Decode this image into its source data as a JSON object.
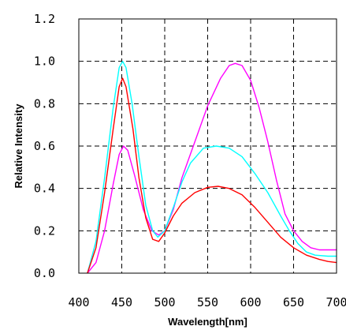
{
  "chart_data": {
    "type": "line",
    "title": "",
    "xlabel": "Wavelength[nm]",
    "ylabel": "Relative Intensity",
    "xlim": [
      400,
      700
    ],
    "ylim": [
      0,
      1.2
    ],
    "x_ticks": [
      "400",
      "450",
      "500",
      "550",
      "600",
      "650",
      "700"
    ],
    "y_ticks": [
      "0.0",
      "0.2",
      "0.4",
      "0.6",
      "0.8",
      "1.0",
      "1.2"
    ],
    "grid": true,
    "grid_style": "dashed",
    "legend": "none",
    "series": [
      {
        "color": "#ff00ff",
        "points": [
          [
            410,
            0
          ],
          [
            420,
            0.05
          ],
          [
            430,
            0.2
          ],
          [
            440,
            0.42
          ],
          [
            447,
            0.56
          ],
          [
            452,
            0.6
          ],
          [
            457,
            0.58
          ],
          [
            465,
            0.46
          ],
          [
            475,
            0.3
          ],
          [
            485,
            0.2
          ],
          [
            493,
            0.18
          ],
          [
            500,
            0.2
          ],
          [
            510,
            0.3
          ],
          [
            520,
            0.45
          ],
          [
            535,
            0.62
          ],
          [
            550,
            0.79
          ],
          [
            565,
            0.92
          ],
          [
            575,
            0.98
          ],
          [
            582,
            0.99
          ],
          [
            590,
            0.98
          ],
          [
            600,
            0.91
          ],
          [
            610,
            0.78
          ],
          [
            620,
            0.62
          ],
          [
            630,
            0.44
          ],
          [
            640,
            0.28
          ],
          [
            650,
            0.2
          ],
          [
            660,
            0.15
          ],
          [
            670,
            0.12
          ],
          [
            680,
            0.11
          ],
          [
            690,
            0.11
          ],
          [
            700,
            0.11
          ]
        ]
      },
      {
        "color": "#00ffff",
        "points": [
          [
            410,
            0
          ],
          [
            420,
            0.15
          ],
          [
            430,
            0.45
          ],
          [
            440,
            0.78
          ],
          [
            447,
            0.97
          ],
          [
            451,
            1.0
          ],
          [
            455,
            0.97
          ],
          [
            462,
            0.8
          ],
          [
            470,
            0.55
          ],
          [
            478,
            0.32
          ],
          [
            486,
            0.2
          ],
          [
            492,
            0.17
          ],
          [
            500,
            0.2
          ],
          [
            510,
            0.31
          ],
          [
            520,
            0.43
          ],
          [
            530,
            0.52
          ],
          [
            545,
            0.59
          ],
          [
            560,
            0.6
          ],
          [
            575,
            0.59
          ],
          [
            590,
            0.55
          ],
          [
            605,
            0.47
          ],
          [
            620,
            0.38
          ],
          [
            635,
            0.27
          ],
          [
            645,
            0.2
          ],
          [
            655,
            0.14
          ],
          [
            665,
            0.1
          ],
          [
            675,
            0.085
          ],
          [
            690,
            0.08
          ],
          [
            700,
            0.08
          ]
        ]
      },
      {
        "color": "#ff0000",
        "points": [
          [
            410,
            0
          ],
          [
            420,
            0.12
          ],
          [
            430,
            0.38
          ],
          [
            440,
            0.68
          ],
          [
            447,
            0.88
          ],
          [
            451,
            0.92
          ],
          [
            455,
            0.88
          ],
          [
            463,
            0.68
          ],
          [
            470,
            0.45
          ],
          [
            478,
            0.26
          ],
          [
            486,
            0.16
          ],
          [
            493,
            0.15
          ],
          [
            500,
            0.19
          ],
          [
            510,
            0.27
          ],
          [
            520,
            0.33
          ],
          [
            535,
            0.38
          ],
          [
            550,
            0.405
          ],
          [
            562,
            0.41
          ],
          [
            575,
            0.4
          ],
          [
            590,
            0.37
          ],
          [
            605,
            0.31
          ],
          [
            620,
            0.24
          ],
          [
            635,
            0.17
          ],
          [
            650,
            0.12
          ],
          [
            665,
            0.085
          ],
          [
            680,
            0.065
          ],
          [
            690,
            0.055
          ],
          [
            700,
            0.05
          ]
        ]
      }
    ]
  }
}
